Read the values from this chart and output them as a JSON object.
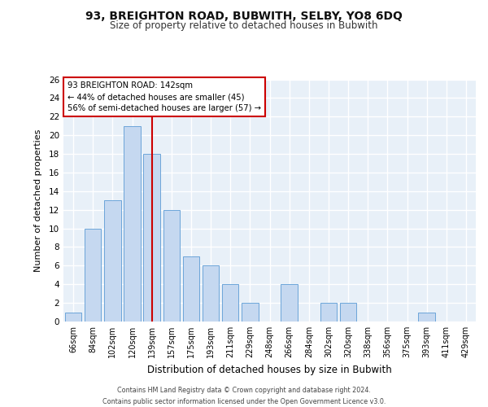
{
  "title": "93, BREIGHTON ROAD, BUBWITH, SELBY, YO8 6DQ",
  "subtitle": "Size of property relative to detached houses in Bubwith",
  "xlabel": "Distribution of detached houses by size in Bubwith",
  "ylabel": "Number of detached properties",
  "categories": [
    "66sqm",
    "84sqm",
    "102sqm",
    "120sqm",
    "139sqm",
    "157sqm",
    "175sqm",
    "193sqm",
    "211sqm",
    "229sqm",
    "248sqm",
    "266sqm",
    "284sqm",
    "302sqm",
    "320sqm",
    "338sqm",
    "356sqm",
    "375sqm",
    "393sqm",
    "411sqm",
    "429sqm"
  ],
  "values": [
    1,
    10,
    13,
    21,
    18,
    12,
    7,
    6,
    4,
    2,
    0,
    4,
    0,
    2,
    2,
    0,
    0,
    0,
    1,
    0,
    0
  ],
  "bar_color": "#c5d8f0",
  "bar_edge_color": "#5b9bd5",
  "highlight_index": 4,
  "red_line_color": "#cc0000",
  "annotation_text": "93 BREIGHTON ROAD: 142sqm\n← 44% of detached houses are smaller (45)\n56% of semi-detached houses are larger (57) →",
  "annotation_box_color": "#ffffff",
  "annotation_box_edge_color": "#cc0000",
  "ylim": [
    0,
    26
  ],
  "yticks": [
    0,
    2,
    4,
    6,
    8,
    10,
    12,
    14,
    16,
    18,
    20,
    22,
    24,
    26
  ],
  "background_color": "#e8f0f8",
  "grid_color": "#ffffff",
  "footer_line1": "Contains HM Land Registry data © Crown copyright and database right 2024.",
  "footer_line2": "Contains public sector information licensed under the Open Government Licence v3.0."
}
